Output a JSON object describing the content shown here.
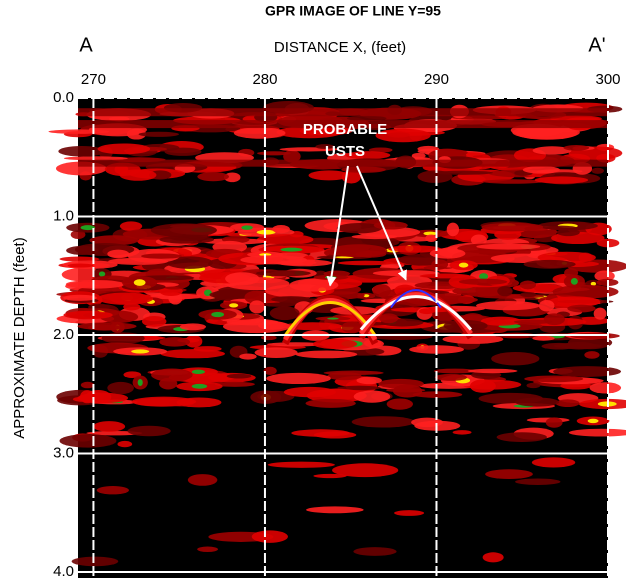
{
  "chart_data": {
    "type": "image",
    "title": "GPR IMAGE OF LINE Y=95",
    "x_label": "DISTANCE X, (feet)",
    "y_label": "APPROXIMATE DEPTH (feet)",
    "left_marker": "A",
    "right_marker": "A'",
    "annotation": "PROBABLE\nUSTS",
    "xlim": [
      269.1,
      300
    ],
    "xticks": [
      270,
      280,
      290,
      300
    ],
    "ylim": [
      0,
      4
    ],
    "yticks": [
      {
        "value": 0,
        "label": "0.0"
      },
      {
        "value": 1,
        "label": "1.0"
      },
      {
        "value": 2,
        "label": "2.0"
      },
      {
        "value": 3,
        "label": "3.0"
      },
      {
        "value": 4,
        "label": "4.0"
      }
    ],
    "y_inverted": true,
    "grid": true,
    "grid_color": "#ffffff",
    "annotation_targets": [
      {
        "x": 283.8,
        "y": 1.65
      },
      {
        "x": 288.8,
        "y": 1.6
      }
    ]
  }
}
